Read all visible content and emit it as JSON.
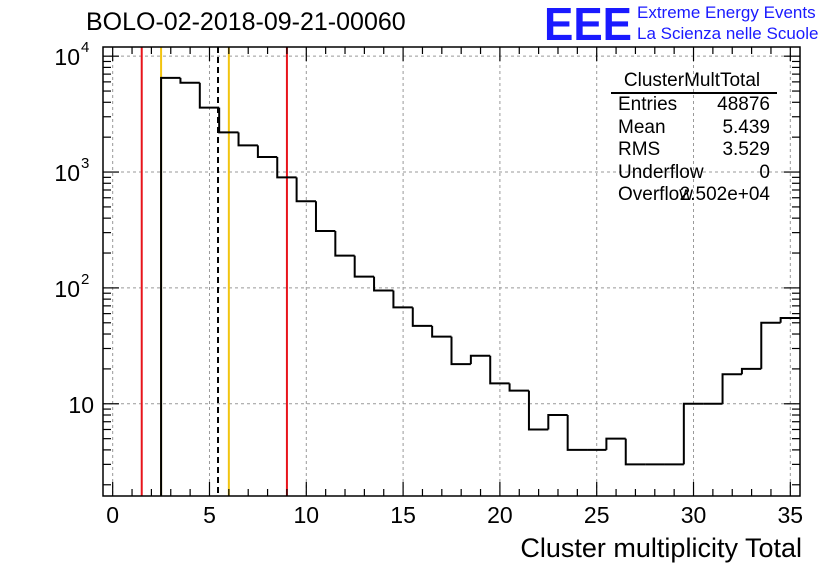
{
  "title": "BOLO-02-2018-09-21-00060",
  "logo": {
    "text": "EEE",
    "line1": "Extreme Energy Events",
    "line2": "La Scienza nelle Scuole",
    "color": "#1a1aff"
  },
  "stats": {
    "title": "ClusterMultTotal",
    "rows": [
      {
        "key": "Entries",
        "value": "48876"
      },
      {
        "key": "Mean",
        "value": "5.439"
      },
      {
        "key": "RMS",
        "value": "3.529"
      },
      {
        "key": "Underflow",
        "value": "0"
      },
      {
        "key": "Overflow",
        "value": "2.502e+04"
      }
    ]
  },
  "chart_data": {
    "type": "histogram",
    "title": "BOLO-02-2018-09-21-00060",
    "xlabel": "Cluster multiplicity Total",
    "ylabel": "",
    "xlim": [
      -0.5,
      35.5
    ],
    "ylim": [
      1.6,
      12000
    ],
    "yscale": "log",
    "grid": true,
    "bin_width": 1,
    "bin_starts": [
      2.5,
      3.5,
      4.5,
      5.5,
      6.5,
      7.5,
      8.5,
      9.5,
      10.5,
      11.5,
      12.5,
      13.5,
      14.5,
      15.5,
      16.5,
      17.5,
      18.5,
      19.5,
      20.5,
      21.5,
      22.5,
      23.5,
      24.5,
      25.5,
      26.5,
      27.5,
      28.5,
      29.5,
      30.5,
      31.5,
      32.5,
      33.5,
      34.5
    ],
    "values": [
      6500,
      5900,
      3600,
      2200,
      1700,
      1350,
      900,
      560,
      310,
      190,
      125,
      95,
      68,
      47,
      38,
      22,
      26,
      15,
      13,
      6,
      8,
      4,
      4,
      5,
      3,
      3,
      3,
      10,
      10,
      18,
      20,
      50,
      55
    ],
    "xticks": [
      0,
      5,
      10,
      15,
      20,
      25,
      30,
      35
    ],
    "xtick_labels": [
      "0",
      "5",
      "10",
      "15",
      "20",
      "25",
      "30",
      "35"
    ],
    "yticks": [
      10,
      100,
      1000,
      10000
    ],
    "ytick_labels": [
      "10",
      "10",
      "10",
      "10"
    ],
    "ytick_exponents": [
      "",
      "2",
      "3",
      "4"
    ],
    "vlines": [
      {
        "x": 1.5,
        "color": "#e8141b",
        "style": "solid"
      },
      {
        "x": 2.5,
        "color": "#f2c40f",
        "style": "solid"
      },
      {
        "x": 5.44,
        "color": "#000000",
        "style": "dashed"
      },
      {
        "x": 6.0,
        "color": "#f2c40f",
        "style": "solid"
      },
      {
        "x": 9.0,
        "color": "#e8141b",
        "style": "solid"
      }
    ]
  }
}
